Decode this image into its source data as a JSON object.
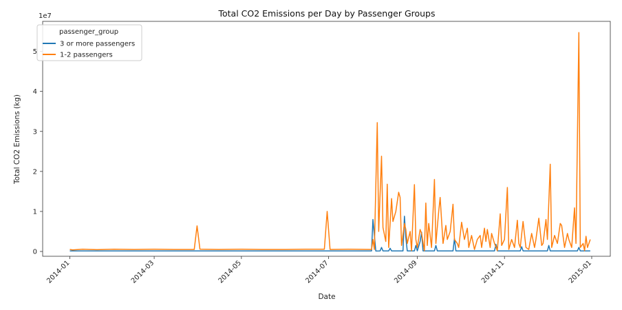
{
  "chart_data": {
    "type": "line",
    "title": "Total CO2 Emissions per Day by Passenger Groups",
    "xlabel": "Date",
    "ylabel": "Total CO2 Emissions (kg)",
    "y_scale_label": "1e7",
    "y_scale_factor": 10000000,
    "ylim": [
      -1200000,
      57500000
    ],
    "xlim": [
      "2013-12-13",
      "2015-01-14"
    ],
    "x_ticks": [
      "2014-01",
      "2014-03",
      "2014-05",
      "2014-07",
      "2014-09",
      "2014-11",
      "2015-01"
    ],
    "y_ticks": [
      0,
      1,
      2,
      3,
      4,
      5
    ],
    "grid": false,
    "legend": {
      "title": "passenger_group",
      "placement": "top-left",
      "entries": [
        "3 or more passengers",
        "1-2 passengers"
      ]
    },
    "series": [
      {
        "name": "3 or more passengers",
        "color": "#1f77b4",
        "points": [
          [
            "2014-01-01",
            150000
          ],
          [
            "2014-03-01",
            150000
          ],
          [
            "2014-05-01",
            150000
          ],
          [
            "2014-07-01",
            150000
          ],
          [
            "2014-07-31",
            150000
          ],
          [
            "2014-08-01",
            8000000
          ],
          [
            "2014-08-03",
            100000
          ],
          [
            "2014-08-06",
            150000
          ],
          [
            "2014-08-07",
            1000000
          ],
          [
            "2014-08-08",
            150000
          ],
          [
            "2014-08-12",
            150000
          ],
          [
            "2014-08-13",
            800000
          ],
          [
            "2014-08-14",
            150000
          ],
          [
            "2014-08-22",
            150000
          ],
          [
            "2014-08-23",
            8800000
          ],
          [
            "2014-08-24",
            3500000
          ],
          [
            "2014-08-25",
            150000
          ],
          [
            "2014-08-30",
            150000
          ],
          [
            "2014-08-31",
            1500000
          ],
          [
            "2014-09-01",
            150000
          ],
          [
            "2014-09-03",
            2500000
          ],
          [
            "2014-09-04",
            4800000
          ],
          [
            "2014-09-05",
            150000
          ],
          [
            "2014-09-13",
            150000
          ],
          [
            "2014-09-14",
            1500000
          ],
          [
            "2014-09-15",
            150000
          ],
          [
            "2014-09-26",
            150000
          ],
          [
            "2014-09-27",
            3200000
          ],
          [
            "2014-09-28",
            150000
          ],
          [
            "2014-10-25",
            150000
          ],
          [
            "2014-10-26",
            1800000
          ],
          [
            "2014-10-27",
            150000
          ],
          [
            "2014-11-12",
            150000
          ],
          [
            "2014-11-13",
            1200000
          ],
          [
            "2014-11-14",
            150000
          ],
          [
            "2014-12-01",
            150000
          ],
          [
            "2014-12-02",
            1500000
          ],
          [
            "2014-12-03",
            150000
          ],
          [
            "2014-12-22",
            150000
          ],
          [
            "2014-12-23",
            1000000
          ],
          [
            "2014-12-24",
            150000
          ],
          [
            "2014-12-31",
            150000
          ]
        ]
      },
      {
        "name": "1-2 passengers",
        "color": "#ff7f0e",
        "points": [
          [
            "2014-01-01",
            500000
          ],
          [
            "2014-01-03",
            400000
          ],
          [
            "2014-01-10",
            550000
          ],
          [
            "2014-01-20",
            450000
          ],
          [
            "2014-02-01",
            550000
          ],
          [
            "2014-02-15",
            500000
          ],
          [
            "2014-03-01",
            550000
          ],
          [
            "2014-03-15",
            500000
          ],
          [
            "2014-03-29",
            500000
          ],
          [
            "2014-03-31",
            6400000
          ],
          [
            "2014-04-02",
            550000
          ],
          [
            "2014-04-15",
            500000
          ],
          [
            "2014-05-01",
            550000
          ],
          [
            "2014-05-15",
            500000
          ],
          [
            "2014-06-01",
            500000
          ],
          [
            "2014-06-15",
            550000
          ],
          [
            "2014-06-28",
            550000
          ],
          [
            "2014-06-30",
            10000000
          ],
          [
            "2014-07-02",
            500000
          ],
          [
            "2014-07-15",
            550000
          ],
          [
            "2014-07-31",
            500000
          ],
          [
            "2014-08-01",
            3000000
          ],
          [
            "2014-08-02",
            500000
          ],
          [
            "2014-08-04",
            32200000
          ],
          [
            "2014-08-05",
            5000000
          ],
          [
            "2014-08-07",
            23800000
          ],
          [
            "2014-08-08",
            6000000
          ],
          [
            "2014-08-10",
            2500000
          ],
          [
            "2014-08-11",
            16800000
          ],
          [
            "2014-08-12",
            1000000
          ],
          [
            "2014-08-14",
            13200000
          ],
          [
            "2014-08-15",
            7500000
          ],
          [
            "2014-08-17",
            10000000
          ],
          [
            "2014-08-19",
            14800000
          ],
          [
            "2014-08-20",
            13500000
          ],
          [
            "2014-08-21",
            1500000
          ],
          [
            "2014-08-23",
            7000000
          ],
          [
            "2014-08-24",
            5500000
          ],
          [
            "2014-08-25",
            2000000
          ],
          [
            "2014-08-27",
            5000000
          ],
          [
            "2014-08-28",
            200000
          ],
          [
            "2014-08-30",
            16700000
          ],
          [
            "2014-08-31",
            3000000
          ],
          [
            "2014-09-01",
            1000000
          ],
          [
            "2014-09-03",
            5500000
          ],
          [
            "2014-09-04",
            4500000
          ],
          [
            "2014-09-06",
            200000
          ],
          [
            "2014-09-07",
            12100000
          ],
          [
            "2014-09-08",
            1500000
          ],
          [
            "2014-09-09",
            7000000
          ],
          [
            "2014-09-11",
            1000000
          ],
          [
            "2014-09-13",
            18000000
          ],
          [
            "2014-09-14",
            2000000
          ],
          [
            "2014-09-16",
            10000000
          ],
          [
            "2014-09-17",
            13500000
          ],
          [
            "2014-09-19",
            2000000
          ],
          [
            "2014-09-21",
            6500000
          ],
          [
            "2014-09-22",
            3000000
          ],
          [
            "2014-09-24",
            5000000
          ],
          [
            "2014-09-26",
            11800000
          ],
          [
            "2014-09-27",
            3000000
          ],
          [
            "2014-09-29",
            2000000
          ],
          [
            "2014-09-30",
            1000000
          ],
          [
            "2014-10-02",
            7300000
          ],
          [
            "2014-10-04",
            3000000
          ],
          [
            "2014-10-06",
            5800000
          ],
          [
            "2014-10-07",
            1000000
          ],
          [
            "2014-10-09",
            4000000
          ],
          [
            "2014-10-11",
            500000
          ],
          [
            "2014-10-13",
            3000000
          ],
          [
            "2014-10-15",
            4000000
          ],
          [
            "2014-10-16",
            1000000
          ],
          [
            "2014-10-18",
            5800000
          ],
          [
            "2014-10-19",
            2500000
          ],
          [
            "2014-10-20",
            5500000
          ],
          [
            "2014-10-22",
            1000000
          ],
          [
            "2014-10-23",
            4500000
          ],
          [
            "2014-10-25",
            2000000
          ],
          [
            "2014-10-27",
            200000
          ],
          [
            "2014-10-29",
            9400000
          ],
          [
            "2014-10-30",
            1500000
          ],
          [
            "2014-11-01",
            3000000
          ],
          [
            "2014-11-03",
            16000000
          ],
          [
            "2014-11-04",
            500000
          ],
          [
            "2014-11-06",
            3000000
          ],
          [
            "2014-11-08",
            1000000
          ],
          [
            "2014-11-10",
            7800000
          ],
          [
            "2014-11-11",
            2000000
          ],
          [
            "2014-11-12",
            1000000
          ],
          [
            "2014-11-14",
            7500000
          ],
          [
            "2014-11-16",
            1000000
          ],
          [
            "2014-11-18",
            500000
          ],
          [
            "2014-11-20",
            4500000
          ],
          [
            "2014-11-22",
            1000000
          ],
          [
            "2014-11-23",
            3000000
          ],
          [
            "2014-11-25",
            8300000
          ],
          [
            "2014-11-27",
            1500000
          ],
          [
            "2014-11-28",
            2000000
          ],
          [
            "2014-11-30",
            8000000
          ],
          [
            "2014-12-01",
            3000000
          ],
          [
            "2014-12-03",
            21800000
          ],
          [
            "2014-12-04",
            1000000
          ],
          [
            "2014-12-06",
            4000000
          ],
          [
            "2014-12-08",
            2000000
          ],
          [
            "2014-12-10",
            7000000
          ],
          [
            "2014-12-11",
            6500000
          ],
          [
            "2014-12-13",
            1000000
          ],
          [
            "2014-12-15",
            4500000
          ],
          [
            "2014-12-16",
            3000000
          ],
          [
            "2014-12-18",
            1000000
          ],
          [
            "2014-12-20",
            10900000
          ],
          [
            "2014-12-21",
            2000000
          ],
          [
            "2014-12-23",
            54700000
          ],
          [
            "2014-12-24",
            1000000
          ],
          [
            "2014-12-26",
            2000000
          ],
          [
            "2014-12-27",
            200000
          ],
          [
            "2014-12-28",
            3800000
          ],
          [
            "2014-12-29",
            1000000
          ],
          [
            "2014-12-31",
            3000000
          ]
        ]
      }
    ]
  }
}
